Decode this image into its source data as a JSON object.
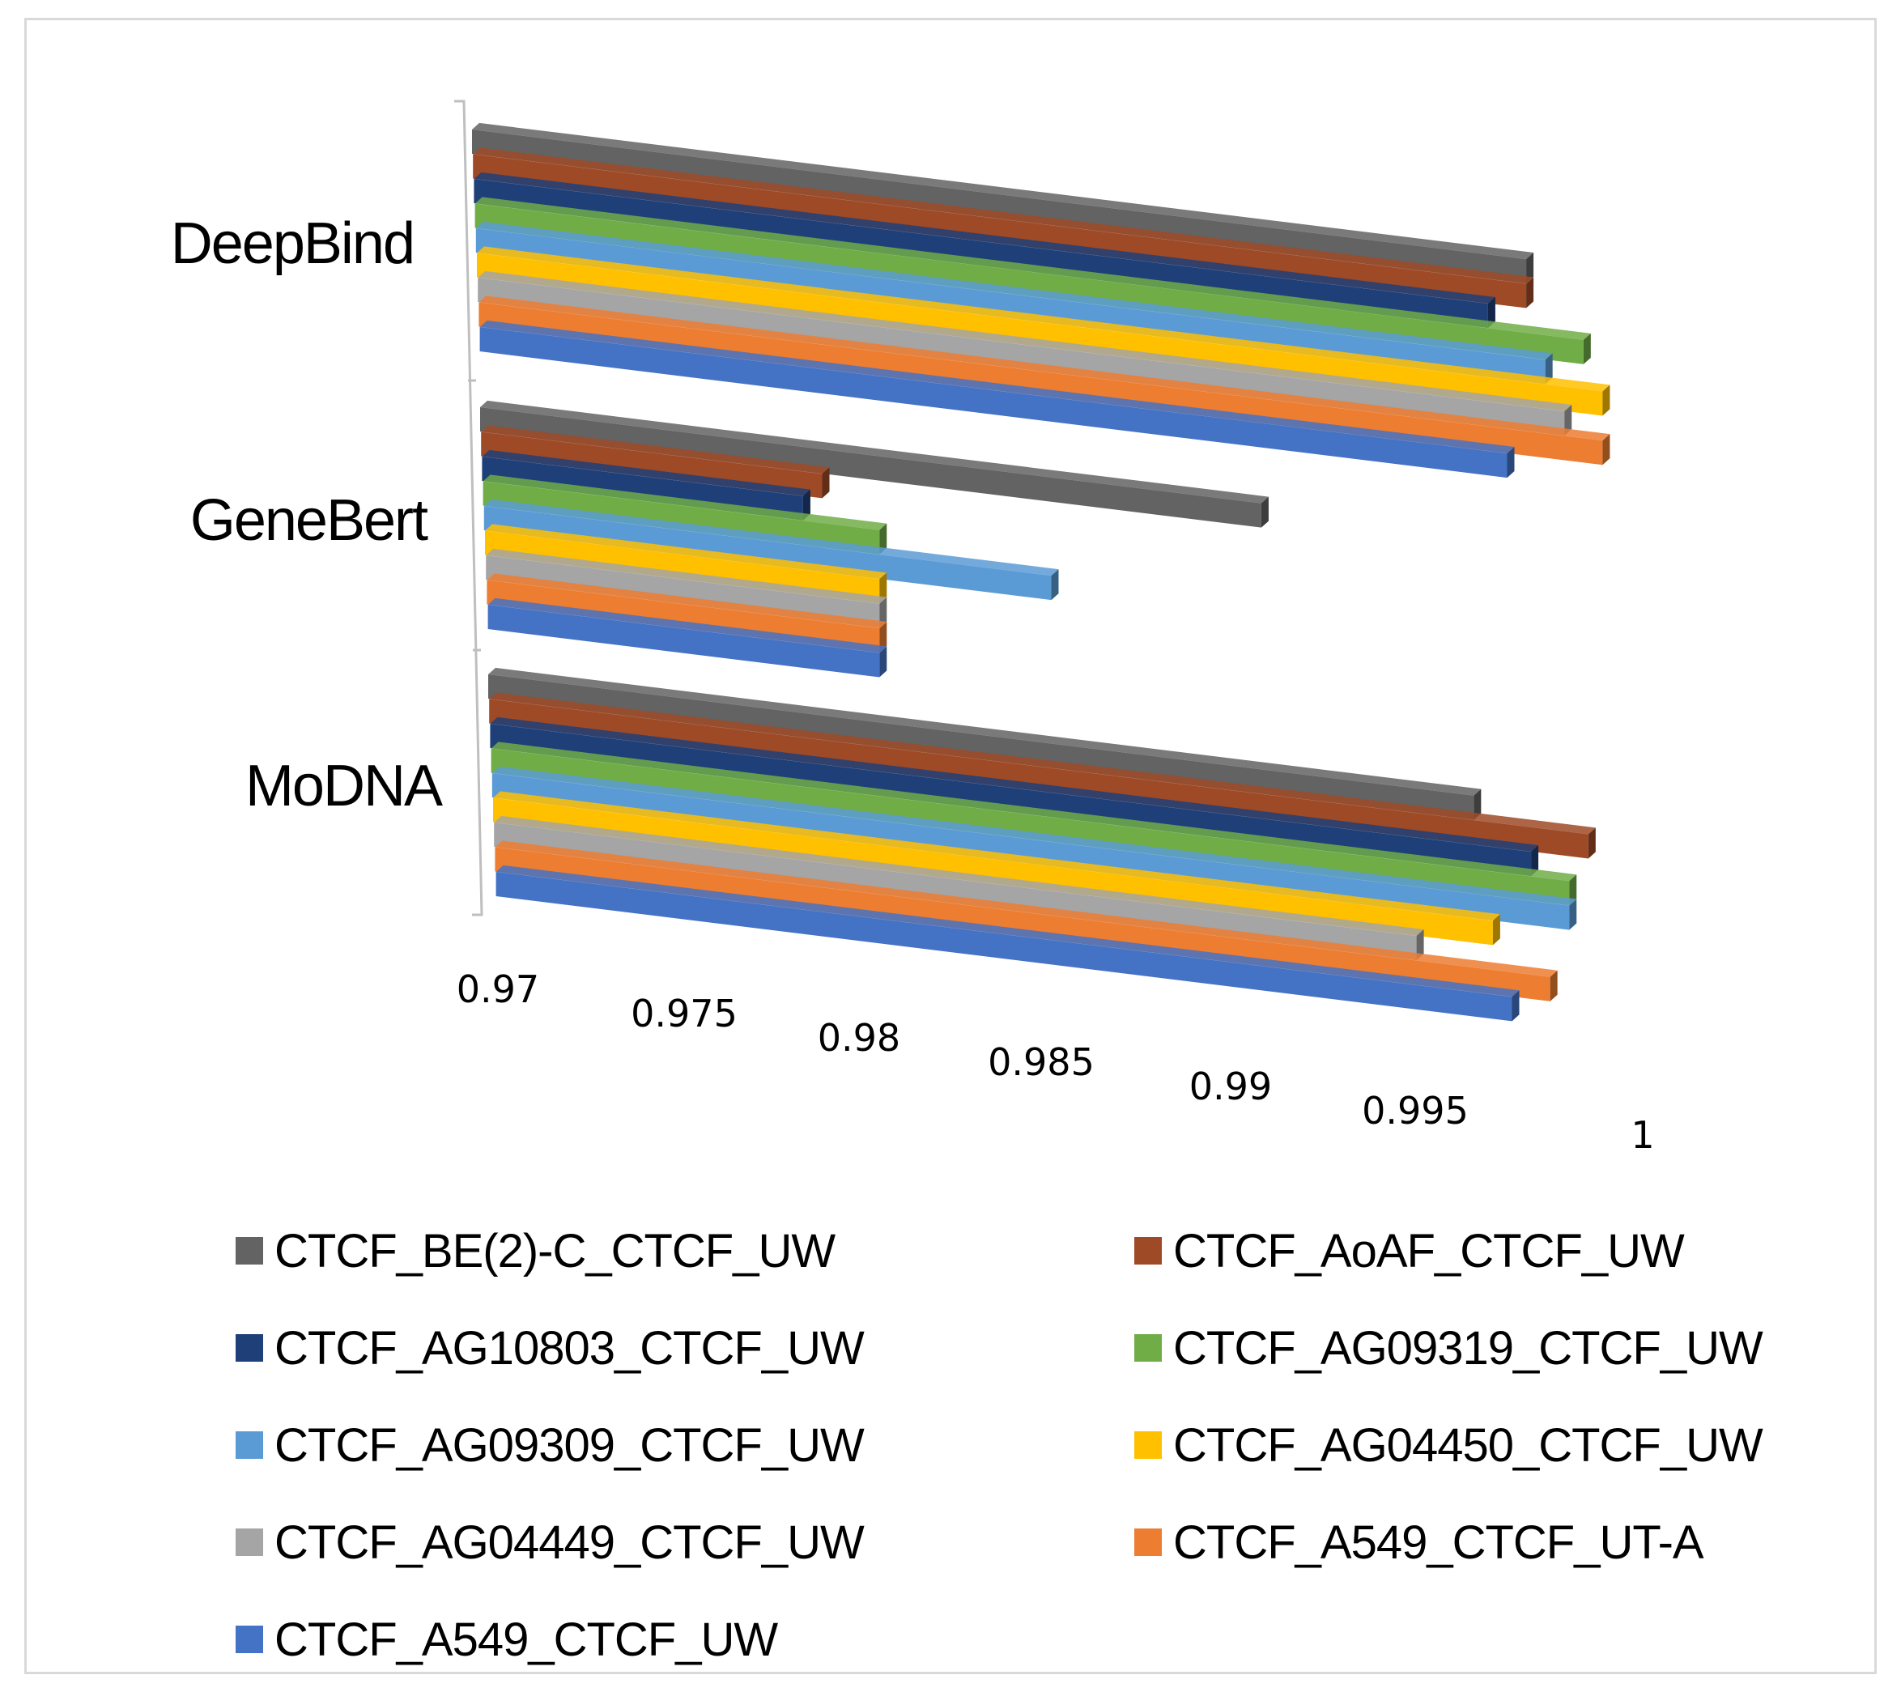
{
  "chart_data": {
    "type": "bar",
    "orientation": "horizontal-3d",
    "title": "",
    "xlabel": "",
    "ylabel": "",
    "xlim": [
      0.97,
      1
    ],
    "x_ticks": [
      "0.97",
      "0.975",
      "0.98",
      "0.985",
      "0.99",
      "0.995",
      "1"
    ],
    "categories": [
      "DeepBind",
      "GeneBert",
      "MoDNA"
    ],
    "series": [
      {
        "name": "CTCF_BE(2)-C_CTCF_UW",
        "color": "#636363",
        "values": [
          0.9975,
          0.9905,
          0.996
        ]
      },
      {
        "name": "CTCF_AoAF_CTCF_UW",
        "color": "#9e4a26",
        "values": [
          0.9975,
          0.979,
          0.999
        ]
      },
      {
        "name": "CTCF_AG10803_CTCF_UW",
        "color": "#1f3f78",
        "values": [
          0.9965,
          0.9785,
          0.9975
        ]
      },
      {
        "name": "CTCF_AG09319_CTCF_UW",
        "color": "#70ad47",
        "values": [
          0.999,
          0.9805,
          0.9985
        ]
      },
      {
        "name": "CTCF_AG09309_CTCF_UW",
        "color": "#5b9bd5",
        "values": [
          0.998,
          0.985,
          0.9985
        ]
      },
      {
        "name": "CTCF_AG04450_CTCF_UW",
        "color": "#ffc000",
        "values": [
          0.9995,
          0.9805,
          0.9965
        ]
      },
      {
        "name": "CTCF_AG04449_CTCF_UW",
        "color": "#a5a5a5",
        "values": [
          0.9985,
          0.9805,
          0.9945
        ]
      },
      {
        "name": "CTCF_A549_CTCF_UT-A",
        "color": "#ed7d31",
        "values": [
          0.9995,
          0.9805,
          0.998
        ]
      },
      {
        "name": "CTCF_A549_CTCF_UW",
        "color": "#4472c4",
        "values": [
          0.997,
          0.9805,
          0.997
        ]
      }
    ],
    "legend_position": "bottom",
    "grid": false
  }
}
